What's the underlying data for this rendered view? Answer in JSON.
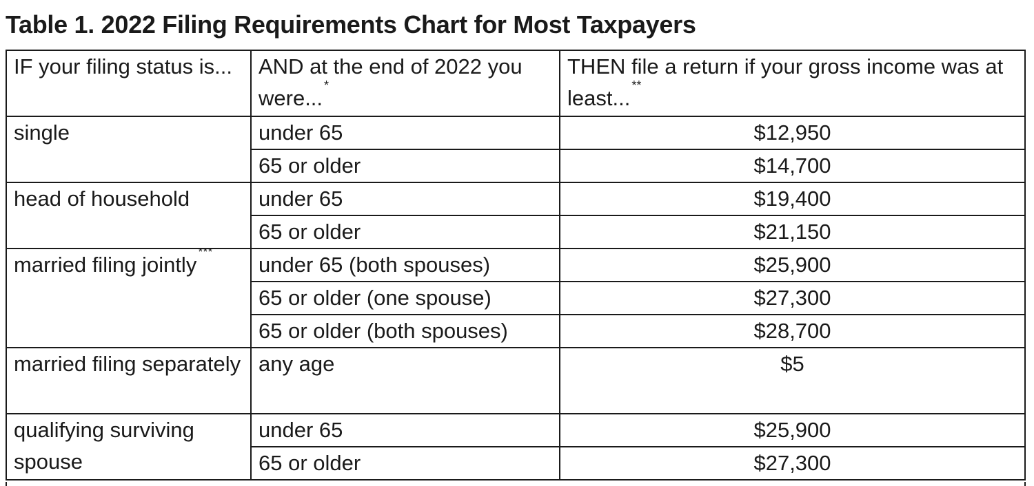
{
  "title": "Table 1. 2022 Filing Requirements Chart for Most Taxpayers",
  "header": {
    "col1": "IF your filing status is...",
    "col2": "AND at the end of 2022 you were...",
    "col2_mark": "*",
    "col3": "THEN file a return if your gross income was at least...",
    "col3_mark": "**"
  },
  "groups": [
    {
      "status": "single",
      "status_mark": "",
      "rows": [
        {
          "age": "under 65",
          "amount": "$12,950"
        },
        {
          "age": "65 or older",
          "amount": "$14,700"
        }
      ]
    },
    {
      "status": "head of household",
      "status_mark": "",
      "rows": [
        {
          "age": "under 65",
          "amount": "$19,400"
        },
        {
          "age": "65 or older",
          "amount": "$21,150"
        }
      ]
    },
    {
      "status": "married filing jointly",
      "status_mark": "***",
      "rows": [
        {
          "age": "under 65 (both spouses)",
          "amount": "$25,900"
        },
        {
          "age": "65 or older (one spouse)",
          "amount": "$27,300"
        },
        {
          "age": "65 or older (both spouses)",
          "amount": "$28,700"
        }
      ]
    },
    {
      "status": "married filing separately",
      "status_mark": "",
      "rows": [
        {
          "age": "any age",
          "amount": "$5"
        }
      ]
    },
    {
      "status": "qualifying surviving spouse",
      "status_mark": "",
      "rows": [
        {
          "age": "under 65",
          "amount": "$25,900"
        },
        {
          "age": "65 or older",
          "amount": "$27,300"
        }
      ]
    }
  ]
}
